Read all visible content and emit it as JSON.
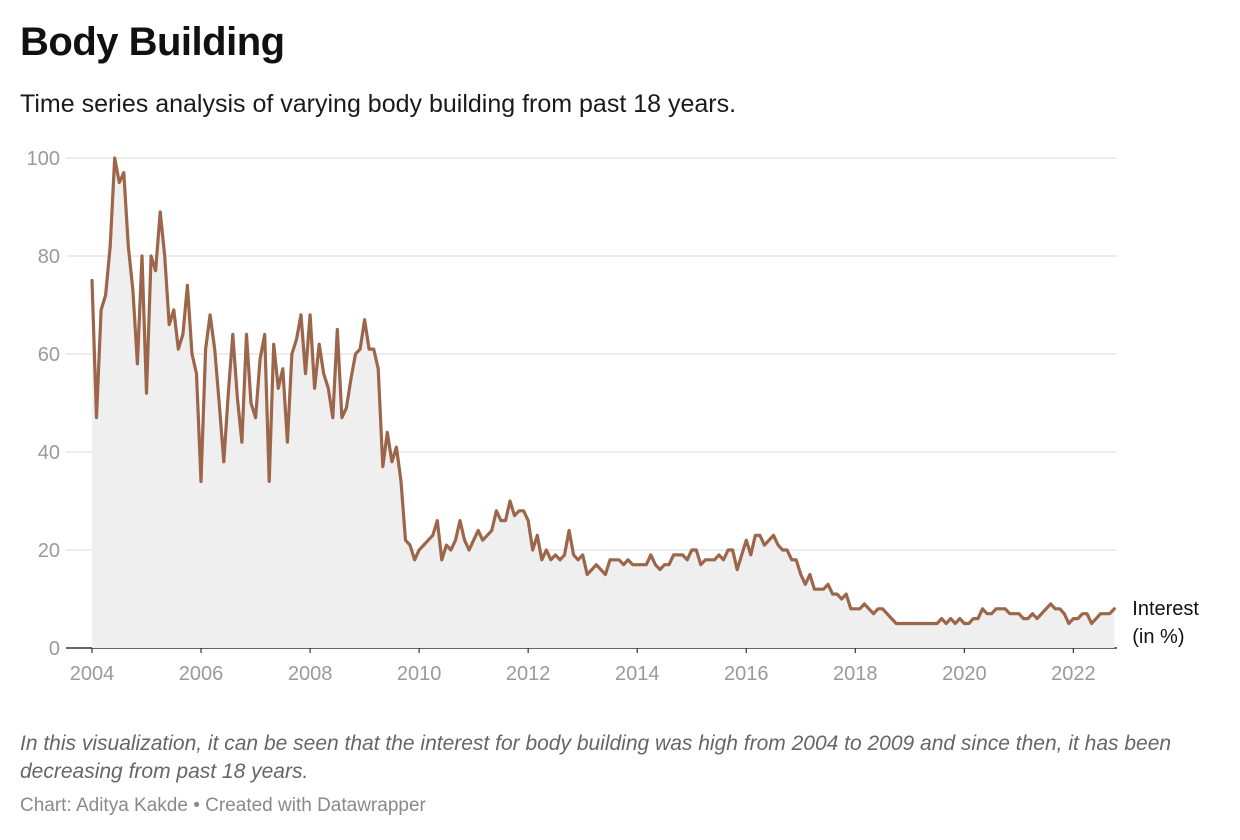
{
  "header": {
    "title": "Body Building",
    "subtitle": "Time series analysis of varying body building from past 18 years."
  },
  "notes": "In this visualization, it can be seen that the interest for body building was high from 2004 to 2009 and since then, it has been decreasing from past 18 years.",
  "footer": {
    "source": "Chart: Aditya Kakde • Created with Datawrapper"
  },
  "colors": {
    "line": "#9c664a",
    "area": "#efefef",
    "grid": "#e2e2e2",
    "axis": "#333333"
  },
  "chart_data": {
    "type": "area",
    "title": "Body Building",
    "xlabel": "",
    "ylabel": "",
    "xlim": [
      2004,
      2022.8
    ],
    "ylim": [
      0,
      100
    ],
    "x_ticks": [
      2004,
      2006,
      2008,
      2010,
      2012,
      2014,
      2016,
      2018,
      2020,
      2022
    ],
    "y_ticks": [
      0,
      20,
      40,
      60,
      80,
      100
    ],
    "grid": true,
    "legend": "none",
    "x_start": "2004-01",
    "x_step": "1 month",
    "series": [
      {
        "name": "Interest\n(in %)",
        "values": [
          75,
          47,
          69,
          72,
          82,
          100,
          95,
          97,
          82,
          73,
          58,
          80,
          52,
          80,
          77,
          89,
          80,
          66,
          69,
          61,
          64,
          74,
          60,
          56,
          34,
          61,
          68,
          61,
          50,
          38,
          52,
          64,
          51,
          42,
          64,
          50,
          47,
          59,
          64,
          34,
          62,
          53,
          57,
          42,
          60,
          63,
          68,
          56,
          68,
          53,
          62,
          56,
          53,
          47,
          65,
          47,
          49,
          55,
          60,
          61,
          67,
          61,
          61,
          57,
          37,
          44,
          38,
          41,
          34,
          22,
          21,
          18,
          20,
          21,
          22,
          23,
          26,
          18,
          21,
          20,
          22,
          26,
          22,
          20,
          22,
          24,
          22,
          23,
          24,
          28,
          26,
          26,
          30,
          27,
          28,
          28,
          26,
          20,
          23,
          18,
          20,
          18,
          19,
          18,
          19,
          24,
          19,
          18,
          19,
          15,
          16,
          17,
          16,
          15,
          18,
          18,
          18,
          17,
          18,
          17,
          17,
          17,
          17,
          19,
          17,
          16,
          17,
          17,
          19,
          19,
          19,
          18,
          20,
          20,
          17,
          18,
          18,
          18,
          19,
          18,
          20,
          20,
          16,
          19,
          22,
          19,
          23,
          23,
          21,
          22,
          23,
          21,
          20,
          20,
          18,
          18,
          15,
          13,
          15,
          12,
          12,
          12,
          13,
          11,
          11,
          10,
          11,
          8,
          8,
          8,
          9,
          8,
          7,
          8,
          8,
          7,
          6,
          5,
          5,
          5,
          5,
          5,
          5,
          5,
          5,
          5,
          5,
          6,
          5,
          6,
          5,
          6,
          5,
          5,
          6,
          6,
          8,
          7,
          7,
          8,
          8,
          8,
          7,
          7,
          7,
          6,
          6,
          7,
          6,
          7,
          8,
          9,
          8,
          8,
          7,
          5,
          6,
          6,
          7,
          7,
          5,
          6,
          7,
          7,
          7,
          8
        ]
      }
    ]
  }
}
